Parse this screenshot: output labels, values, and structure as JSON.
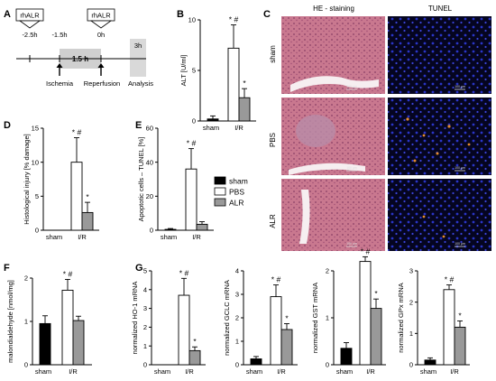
{
  "panel_letters": [
    "A",
    "B",
    "C",
    "D",
    "E",
    "F",
    "G"
  ],
  "timeline": {
    "drug_label": "rhALR",
    "times": [
      "-2.5h",
      "-1.5h",
      "0h",
      "3h"
    ],
    "duration": "1.5 h",
    "events": [
      "Ischemia",
      "Reperfusion",
      "Analysis"
    ]
  },
  "micrographs": {
    "col_titles": [
      "HE - staining",
      "TUNEL"
    ],
    "row_labels": [
      "sham",
      "PBS",
      "ALR"
    ],
    "scale_bar": "100 µm"
  },
  "legend": {
    "items": [
      "sham",
      "PBS",
      "ALR"
    ],
    "colors": [
      "#000000",
      "#ffffff",
      "#999999"
    ]
  },
  "chart_data": [
    {
      "id": "B",
      "type": "bar",
      "ylabel": "ALT [U/ml]",
      "ylim": [
        0,
        10
      ],
      "yticks": [
        0,
        5,
        10
      ],
      "groups": [
        "sham",
        "I/R"
      ],
      "series": [
        {
          "name": "sham",
          "group": "sham",
          "value": 0.2,
          "error": 0.3,
          "marks": ""
        },
        {
          "name": "PBS",
          "group": "I/R",
          "value": 7.2,
          "error": 2.3,
          "marks": "* #"
        },
        {
          "name": "ALR",
          "group": "I/R",
          "value": 2.3,
          "error": 0.9,
          "marks": "*"
        }
      ]
    },
    {
      "id": "D",
      "type": "bar",
      "ylabel": "Histological injury  [% damage]",
      "ylim": [
        0,
        15
      ],
      "yticks": [
        0,
        5,
        10,
        15
      ],
      "groups": [
        "sham",
        "I/R"
      ],
      "series": [
        {
          "name": "sham",
          "group": "sham",
          "value": 0,
          "error": 0,
          "marks": ""
        },
        {
          "name": "PBS",
          "group": "I/R",
          "value": 10,
          "error": 3.6,
          "marks": "* #"
        },
        {
          "name": "ALR",
          "group": "I/R",
          "value": 2.6,
          "error": 1.5,
          "marks": "*"
        }
      ]
    },
    {
      "id": "E",
      "type": "bar",
      "ylabel": "Apoptotic cells – TUNEL [%]",
      "ylim": [
        0,
        60
      ],
      "yticks": [
        0,
        20,
        40,
        60
      ],
      "groups": [
        "sham",
        "I/R"
      ],
      "series": [
        {
          "name": "sham",
          "group": "sham",
          "value": 0.5,
          "error": 0.5,
          "marks": ""
        },
        {
          "name": "PBS",
          "group": "I/R",
          "value": 36,
          "error": 12,
          "marks": "* #"
        },
        {
          "name": "ALR",
          "group": "I/R",
          "value": 3.5,
          "error": 1.5,
          "marks": ""
        }
      ]
    },
    {
      "id": "F",
      "type": "bar",
      "ylabel": "malondialdehyde [nmol/mg]",
      "ylim": [
        0,
        2
      ],
      "yticks": [
        0,
        1,
        2
      ],
      "groups": [
        "sham",
        "I/R"
      ],
      "series": [
        {
          "name": "sham",
          "group": "sham",
          "value": 0.95,
          "error": 0.18,
          "marks": ""
        },
        {
          "name": "PBS",
          "group": "I/R",
          "value": 1.72,
          "error": 0.25,
          "marks": "* #"
        },
        {
          "name": "ALR",
          "group": "I/R",
          "value": 1.02,
          "error": 0.1,
          "marks": ""
        }
      ]
    },
    {
      "id": "G1",
      "type": "bar",
      "ylabel": "normalized HO-1 mRNA",
      "ylim": [
        0,
        5
      ],
      "yticks": [
        0,
        1,
        2,
        3,
        4,
        5
      ],
      "groups": [
        "sham",
        "I/R"
      ],
      "series": [
        {
          "name": "sham",
          "group": "sham",
          "value": 0,
          "error": 0,
          "marks": ""
        },
        {
          "name": "PBS",
          "group": "I/R",
          "value": 3.7,
          "error": 0.9,
          "marks": "* #"
        },
        {
          "name": "ALR",
          "group": "I/R",
          "value": 0.75,
          "error": 0.2,
          "marks": "*"
        }
      ]
    },
    {
      "id": "G2",
      "type": "bar",
      "ylabel": "normalized GCLC mRNA",
      "ylim": [
        0,
        4
      ],
      "yticks": [
        0,
        1,
        2,
        3,
        4
      ],
      "groups": [
        "sham",
        "I/R"
      ],
      "series": [
        {
          "name": "sham",
          "group": "sham",
          "value": 0.25,
          "error": 0.1,
          "marks": ""
        },
        {
          "name": "PBS",
          "group": "I/R",
          "value": 2.9,
          "error": 0.5,
          "marks": "* #"
        },
        {
          "name": "ALR",
          "group": "I/R",
          "value": 1.5,
          "error": 0.25,
          "marks": "*"
        }
      ]
    },
    {
      "id": "G3",
      "type": "bar",
      "ylabel": "normalized GST mRNA",
      "ylim": [
        0,
        2
      ],
      "yticks": [
        0,
        1,
        2
      ],
      "groups": [
        "sham",
        "I/R"
      ],
      "series": [
        {
          "name": "sham",
          "group": "sham",
          "value": 0.35,
          "error": 0.12,
          "marks": ""
        },
        {
          "name": "PBS",
          "group": "I/R",
          "value": 2.2,
          "error": 0.1,
          "marks": "* #"
        },
        {
          "name": "ALR",
          "group": "I/R",
          "value": 1.2,
          "error": 0.2,
          "marks": "*"
        }
      ]
    },
    {
      "id": "G4",
      "type": "bar",
      "ylabel": "normalized GPx mRNA",
      "ylim": [
        0,
        3
      ],
      "yticks": [
        0,
        1,
        2,
        3
      ],
      "groups": [
        "sham",
        "I/R"
      ],
      "series": [
        {
          "name": "sham",
          "group": "sham",
          "value": 0.15,
          "error": 0.07,
          "marks": ""
        },
        {
          "name": "PBS",
          "group": "I/R",
          "value": 2.4,
          "error": 0.15,
          "marks": "* #"
        },
        {
          "name": "ALR",
          "group": "I/R",
          "value": 1.2,
          "error": 0.2,
          "marks": "*"
        }
      ]
    }
  ]
}
